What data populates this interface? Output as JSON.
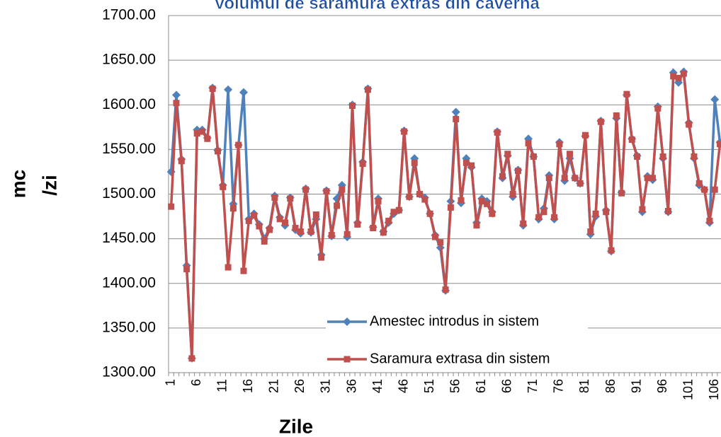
{
  "chart_data": {
    "type": "line",
    "title": "Volumul de saramura extras din caverna",
    "x_label": "Zile",
    "y_label": [
      "mc",
      "/zi"
    ],
    "categories": [
      "1",
      null,
      null,
      null,
      null,
      "6",
      null,
      null,
      null,
      null,
      "11",
      null,
      null,
      null,
      null,
      "16",
      null,
      null,
      null,
      null,
      "21",
      null,
      null,
      null,
      null,
      "26",
      null,
      null,
      null,
      null,
      "31",
      null,
      null,
      null,
      null,
      "36",
      null,
      null,
      null,
      null,
      "41",
      null,
      null,
      null,
      null,
      "46",
      null,
      null,
      null,
      null,
      "51",
      null,
      null,
      null,
      null,
      "56",
      null,
      null,
      null,
      null,
      "61",
      null,
      null,
      null,
      null,
      "66",
      null,
      null,
      null,
      null,
      "71",
      null,
      null,
      null,
      null,
      "76",
      null,
      null,
      null,
      null,
      "81",
      null,
      null,
      null,
      null,
      "86",
      null,
      null,
      null,
      null,
      "91",
      null,
      null,
      null,
      null,
      "96",
      null,
      null,
      null,
      null,
      "101",
      null,
      null,
      null,
      null,
      "106",
      null
    ],
    "series": [
      {
        "name": "Amestec introdus in sistem",
        "color": "#4f81bd",
        "marker": "diamond",
        "values": [
          1525,
          1611,
          1539,
          1420,
          1316,
          1572,
          1572,
          1563,
          1619,
          1549,
          1510,
          1617,
          1489,
          1555,
          1614,
          1472,
          1478,
          1466,
          1450,
          1462,
          1498,
          1474,
          1465,
          1496,
          1460,
          1456,
          1506,
          1457,
          1472,
          1432,
          1504,
          1453,
          1495,
          1510,
          1452,
          1600,
          1468,
          1536,
          1618,
          1463,
          1495,
          1458,
          1468,
          1478,
          1482,
          1571,
          1497,
          1540,
          1500,
          1496,
          1478,
          1454,
          1440,
          1392,
          1492,
          1592,
          1490,
          1540,
          1530,
          1468,
          1495,
          1492,
          1480,
          1570,
          1518,
          1543,
          1497,
          1527,
          1465,
          1562,
          1542,
          1472,
          1484,
          1521,
          1472,
          1558,
          1515,
          1540,
          1518,
          1512,
          1565,
          1455,
          1475,
          1582,
          1482,
          1436,
          1585,
          1502,
          1611,
          1562,
          1543,
          1480,
          1520,
          1516,
          1598,
          1540,
          1480,
          1636,
          1625,
          1637,
          1580,
          1540,
          1510,
          1505,
          1468,
          1606,
          1558
        ]
      },
      {
        "name": "Saramura extrasa din sistem",
        "color": "#c0504d",
        "marker": "square",
        "values": [
          1486,
          1602,
          1537,
          1416,
          1316,
          1568,
          1570,
          1562,
          1618,
          1548,
          1508,
          1418,
          1484,
          1555,
          1414,
          1470,
          1476,
          1464,
          1447,
          1460,
          1496,
          1472,
          1468,
          1495,
          1462,
          1458,
          1505,
          1458,
          1477,
          1429,
          1503,
          1454,
          1487,
          1505,
          1455,
          1599,
          1466,
          1534,
          1617,
          1462,
          1492,
          1457,
          1470,
          1480,
          1482,
          1570,
          1497,
          1535,
          1500,
          1494,
          1478,
          1452,
          1446,
          1393,
          1485,
          1584,
          1493,
          1535,
          1532,
          1465,
          1492,
          1489,
          1478,
          1569,
          1520,
          1545,
          1500,
          1526,
          1467,
          1557,
          1542,
          1474,
          1480,
          1518,
          1474,
          1556,
          1518,
          1545,
          1518,
          1512,
          1566,
          1458,
          1478,
          1581,
          1480,
          1437,
          1588,
          1501,
          1612,
          1561,
          1542,
          1483,
          1518,
          1518,
          1596,
          1542,
          1481,
          1632,
          1630,
          1635,
          1578,
          1542,
          1512,
          1505,
          1470,
          1505,
          1556
        ]
      }
    ],
    "ylim": [
      1300,
      1700
    ],
    "yticks": [
      {
        "value": 1300,
        "label": "1300.00"
      },
      {
        "value": 1350,
        "label": "1350.00"
      },
      {
        "value": 1400,
        "label": "1400.00"
      },
      {
        "value": 1450,
        "label": "1450.00"
      },
      {
        "value": 1500,
        "label": "1500.00"
      },
      {
        "value": 1550,
        "label": "1550.00"
      },
      {
        "value": 1600,
        "label": "1600.00"
      },
      {
        "value": 1650,
        "label": "1650.00"
      },
      {
        "value": 1700,
        "label": "1700.00"
      }
    ],
    "grid": true,
    "legend": "inside-bottom-center"
  }
}
